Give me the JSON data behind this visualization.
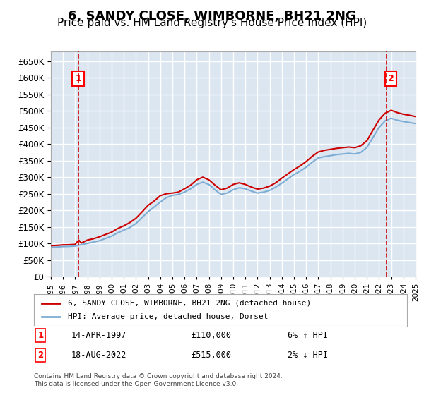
{
  "title": "6, SANDY CLOSE, WIMBORNE, BH21 2NG",
  "subtitle": "Price paid vs. HM Land Registry's House Price Index (HPI)",
  "title_fontsize": 13,
  "subtitle_fontsize": 11,
  "background_color": "#dce6f1",
  "plot_bg_color": "#dce6f1",
  "red_line_color": "#cc0000",
  "blue_line_color": "#7dadd4",
  "grid_color": "#ffffff",
  "legend_label_red": "6, SANDY CLOSE, WIMBORNE, BH21 2NG (detached house)",
  "legend_label_blue": "HPI: Average price, detached house, Dorset",
  "annotation1_label": "1",
  "annotation1_date": "14-APR-1997",
  "annotation1_price": "£110,000",
  "annotation1_hpi": "6% ↑ HPI",
  "annotation2_label": "2",
  "annotation2_date": "18-AUG-2022",
  "annotation2_price": "£515,000",
  "annotation2_hpi": "2% ↓ HPI",
  "footnote": "Contains HM Land Registry data © Crown copyright and database right 2024.\nThis data is licensed under the Open Government Licence v3.0.",
  "ylim": [
    0,
    680000
  ],
  "yticks": [
    0,
    50000,
    100000,
    150000,
    200000,
    250000,
    300000,
    350000,
    400000,
    450000,
    500000,
    550000,
    600000,
    650000
  ],
  "sale1_year": 1997.29,
  "sale1_price": 110000,
  "sale2_year": 2022.63,
  "sale2_price": 515000,
  "hpi_years": [
    1995,
    1995.5,
    1996,
    1996.5,
    1997,
    1997.5,
    1998,
    1998.5,
    1999,
    1999.5,
    2000,
    2000.5,
    2001,
    2001.5,
    2002,
    2002.5,
    2003,
    2003.5,
    2004,
    2004.5,
    2005,
    2005.5,
    2006,
    2006.5,
    2007,
    2007.5,
    2008,
    2008.5,
    2009,
    2009.5,
    2010,
    2010.5,
    2011,
    2011.5,
    2012,
    2012.5,
    2013,
    2013.5,
    2014,
    2014.5,
    2015,
    2015.5,
    2016,
    2016.5,
    2017,
    2017.5,
    2018,
    2018.5,
    2019,
    2019.5,
    2020,
    2020.5,
    2021,
    2021.5,
    2022,
    2022.5,
    2023,
    2023.5,
    2024,
    2024.5,
    2025
  ],
  "hpi_values": [
    88000,
    89000,
    90500,
    91000,
    92000,
    96000,
    100000,
    104000,
    108000,
    115000,
    122000,
    132000,
    140000,
    148000,
    160000,
    178000,
    196000,
    210000,
    225000,
    238000,
    245000,
    248000,
    255000,
    265000,
    278000,
    285000,
    278000,
    262000,
    248000,
    252000,
    262000,
    268000,
    265000,
    258000,
    252000,
    255000,
    260000,
    270000,
    282000,
    295000,
    308000,
    318000,
    330000,
    345000,
    358000,
    362000,
    365000,
    368000,
    370000,
    372000,
    370000,
    375000,
    390000,
    420000,
    450000,
    470000,
    478000,
    472000,
    468000,
    465000,
    462000
  ],
  "red_years": [
    1995,
    1995.5,
    1996,
    1996.5,
    1997,
    1997.29,
    1997.5,
    1998,
    1998.5,
    1999,
    1999.5,
    2000,
    2000.5,
    2001,
    2001.5,
    2002,
    2002.5,
    2003,
    2003.5,
    2004,
    2004.5,
    2005,
    2005.5,
    2006,
    2006.5,
    2007,
    2007.5,
    2008,
    2008.5,
    2009,
    2009.5,
    2010,
    2010.5,
    2011,
    2011.5,
    2012,
    2012.5,
    2013,
    2013.5,
    2014,
    2014.5,
    2015,
    2015.5,
    2016,
    2016.5,
    2017,
    2017.5,
    2018,
    2018.5,
    2019,
    2019.5,
    2020,
    2020.5,
    2021,
    2021.5,
    2022,
    2022.5,
    2023,
    2023.5,
    2024,
    2024.5,
    2025
  ],
  "red_values": [
    93000,
    94000,
    95500,
    96000,
    97000,
    110000,
    101000,
    110000,
    114000,
    120000,
    127000,
    134000,
    145000,
    153000,
    163000,
    176000,
    195000,
    215000,
    228000,
    244000,
    250000,
    252000,
    255000,
    265000,
    276000,
    292000,
    300000,
    292000,
    276000,
    262000,
    267000,
    278000,
    283000,
    278000,
    270000,
    264000,
    267000,
    273000,
    283000,
    297000,
    310000,
    323000,
    334000,
    347000,
    363000,
    376000,
    381000,
    384000,
    387000,
    389000,
    391000,
    389000,
    395000,
    410000,
    442000,
    473000,
    493000,
    502000,
    495000,
    490000,
    487000,
    483000
  ],
  "xmin": 1995,
  "xmax": 2025
}
